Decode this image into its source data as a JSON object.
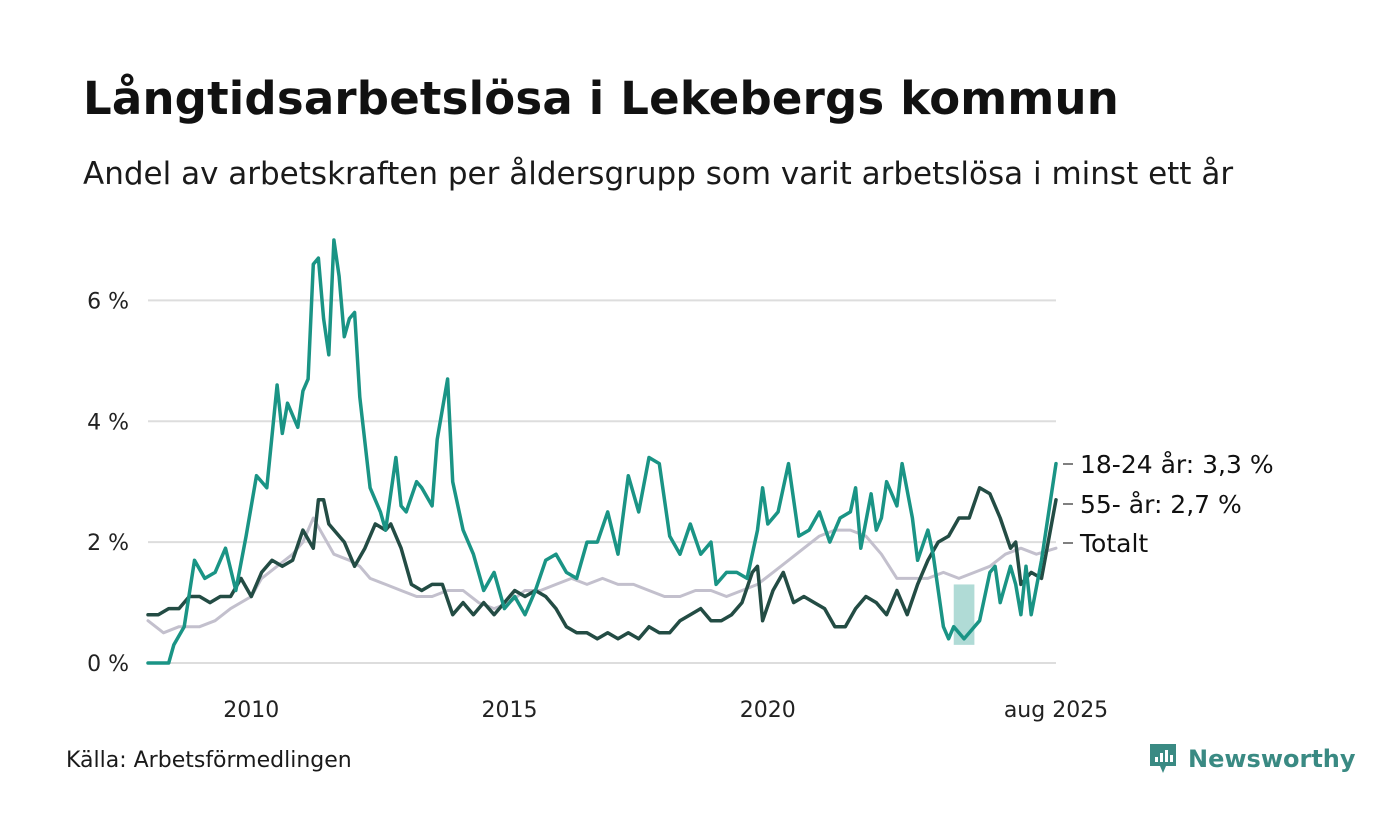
{
  "title": "Långtidsarbetslösa i Lekebergs kommun",
  "subtitle": "Andel av arbetskraften per åldersgrupp som varit arbetslösa i minst ett år",
  "source": "Källa: Arbetsförmedlingen",
  "brand": {
    "name": "Newsworthy",
    "icon": "newsworthy-logo-icon",
    "color": "#3a8a83"
  },
  "chart_data": {
    "type": "line",
    "ylim": [
      0,
      7
    ],
    "xlim": [
      2008.0,
      2025.58
    ],
    "y_ticks": [
      {
        "value": 0,
        "label": "0 %"
      },
      {
        "value": 2,
        "label": "2 %"
      },
      {
        "value": 4,
        "label": "4 %"
      },
      {
        "value": 6,
        "label": "6 %"
      }
    ],
    "x_ticks": [
      {
        "value": 2010,
        "label": "2010"
      },
      {
        "value": 2015,
        "label": "2015"
      },
      {
        "value": 2020,
        "label": "2020"
      },
      {
        "value": 2025.58,
        "label": "aug 2025"
      }
    ],
    "grid": true,
    "legend": "end-of-line labels",
    "uncertainty_band": {
      "series": "18-24 år",
      "x": [
        2023.6,
        2024.0
      ],
      "low": 0.3,
      "high": 1.3,
      "color": "#a7d7d1"
    },
    "series": [
      {
        "name": "Totalt",
        "end_label": "Totalt",
        "color": "#c3c0cd",
        "width": 3,
        "points": [
          [
            2008.0,
            0.7
          ],
          [
            2008.3,
            0.5
          ],
          [
            2008.6,
            0.6
          ],
          [
            2009.0,
            0.6
          ],
          [
            2009.3,
            0.7
          ],
          [
            2009.6,
            0.9
          ],
          [
            2010.0,
            1.1
          ],
          [
            2010.2,
            1.4
          ],
          [
            2010.5,
            1.6
          ],
          [
            2010.8,
            1.8
          ],
          [
            2011.0,
            2.0
          ],
          [
            2011.2,
            2.4
          ],
          [
            2011.4,
            2.1
          ],
          [
            2011.6,
            1.8
          ],
          [
            2011.9,
            1.7
          ],
          [
            2012.1,
            1.6
          ],
          [
            2012.3,
            1.4
          ],
          [
            2012.6,
            1.3
          ],
          [
            2012.9,
            1.2
          ],
          [
            2013.2,
            1.1
          ],
          [
            2013.5,
            1.1
          ],
          [
            2013.8,
            1.2
          ],
          [
            2014.1,
            1.2
          ],
          [
            2014.4,
            1.0
          ],
          [
            2014.7,
            0.9
          ],
          [
            2015.0,
            1.0
          ],
          [
            2015.3,
            1.2
          ],
          [
            2015.6,
            1.2
          ],
          [
            2015.9,
            1.3
          ],
          [
            2016.2,
            1.4
          ],
          [
            2016.5,
            1.3
          ],
          [
            2016.8,
            1.4
          ],
          [
            2017.1,
            1.3
          ],
          [
            2017.4,
            1.3
          ],
          [
            2017.7,
            1.2
          ],
          [
            2018.0,
            1.1
          ],
          [
            2018.3,
            1.1
          ],
          [
            2018.6,
            1.2
          ],
          [
            2018.9,
            1.2
          ],
          [
            2019.2,
            1.1
          ],
          [
            2019.5,
            1.2
          ],
          [
            2019.8,
            1.3
          ],
          [
            2020.1,
            1.5
          ],
          [
            2020.4,
            1.7
          ],
          [
            2020.7,
            1.9
          ],
          [
            2021.0,
            2.1
          ],
          [
            2021.3,
            2.2
          ],
          [
            2021.6,
            2.2
          ],
          [
            2021.9,
            2.1
          ],
          [
            2022.2,
            1.8
          ],
          [
            2022.5,
            1.4
          ],
          [
            2022.8,
            1.4
          ],
          [
            2023.1,
            1.4
          ],
          [
            2023.4,
            1.5
          ],
          [
            2023.7,
            1.4
          ],
          [
            2024.0,
            1.5
          ],
          [
            2024.3,
            1.6
          ],
          [
            2024.6,
            1.8
          ],
          [
            2024.9,
            1.9
          ],
          [
            2025.2,
            1.8
          ],
          [
            2025.58,
            1.9
          ]
        ]
      },
      {
        "name": "55- år",
        "end_label": "55- år: 2,7 %",
        "color": "#234c44",
        "width": 3.5,
        "points": [
          [
            2008.0,
            0.8
          ],
          [
            2008.2,
            0.8
          ],
          [
            2008.4,
            0.9
          ],
          [
            2008.6,
            0.9
          ],
          [
            2008.8,
            1.1
          ],
          [
            2009.0,
            1.1
          ],
          [
            2009.2,
            1.0
          ],
          [
            2009.4,
            1.1
          ],
          [
            2009.6,
            1.1
          ],
          [
            2009.8,
            1.4
          ],
          [
            2010.0,
            1.1
          ],
          [
            2010.2,
            1.5
          ],
          [
            2010.4,
            1.7
          ],
          [
            2010.6,
            1.6
          ],
          [
            2010.8,
            1.7
          ],
          [
            2011.0,
            2.2
          ],
          [
            2011.2,
            1.9
          ],
          [
            2011.3,
            2.7
          ],
          [
            2011.4,
            2.7
          ],
          [
            2011.5,
            2.3
          ],
          [
            2011.8,
            2.0
          ],
          [
            2012.0,
            1.6
          ],
          [
            2012.2,
            1.9
          ],
          [
            2012.4,
            2.3
          ],
          [
            2012.6,
            2.2
          ],
          [
            2012.7,
            2.3
          ],
          [
            2012.9,
            1.9
          ],
          [
            2013.1,
            1.3
          ],
          [
            2013.3,
            1.2
          ],
          [
            2013.5,
            1.3
          ],
          [
            2013.7,
            1.3
          ],
          [
            2013.9,
            0.8
          ],
          [
            2014.1,
            1.0
          ],
          [
            2014.3,
            0.8
          ],
          [
            2014.5,
            1.0
          ],
          [
            2014.7,
            0.8
          ],
          [
            2014.9,
            1.0
          ],
          [
            2015.1,
            1.2
          ],
          [
            2015.3,
            1.1
          ],
          [
            2015.5,
            1.2
          ],
          [
            2015.7,
            1.1
          ],
          [
            2015.9,
            0.9
          ],
          [
            2016.1,
            0.6
          ],
          [
            2016.3,
            0.5
          ],
          [
            2016.5,
            0.5
          ],
          [
            2016.7,
            0.4
          ],
          [
            2016.9,
            0.5
          ],
          [
            2017.1,
            0.4
          ],
          [
            2017.3,
            0.5
          ],
          [
            2017.5,
            0.4
          ],
          [
            2017.7,
            0.6
          ],
          [
            2017.9,
            0.5
          ],
          [
            2018.1,
            0.5
          ],
          [
            2018.3,
            0.7
          ],
          [
            2018.5,
            0.8
          ],
          [
            2018.7,
            0.9
          ],
          [
            2018.9,
            0.7
          ],
          [
            2019.1,
            0.7
          ],
          [
            2019.3,
            0.8
          ],
          [
            2019.5,
            1.0
          ],
          [
            2019.7,
            1.5
          ],
          [
            2019.8,
            1.6
          ],
          [
            2019.9,
            0.7
          ],
          [
            2020.1,
            1.2
          ],
          [
            2020.3,
            1.5
          ],
          [
            2020.5,
            1.0
          ],
          [
            2020.7,
            1.1
          ],
          [
            2020.9,
            1.0
          ],
          [
            2021.1,
            0.9
          ],
          [
            2021.3,
            0.6
          ],
          [
            2021.5,
            0.6
          ],
          [
            2021.7,
            0.9
          ],
          [
            2021.9,
            1.1
          ],
          [
            2022.1,
            1.0
          ],
          [
            2022.3,
            0.8
          ],
          [
            2022.5,
            1.2
          ],
          [
            2022.7,
            0.8
          ],
          [
            2022.9,
            1.3
          ],
          [
            2023.1,
            1.7
          ],
          [
            2023.3,
            2.0
          ],
          [
            2023.5,
            2.1
          ],
          [
            2023.7,
            2.4
          ],
          [
            2023.9,
            2.4
          ],
          [
            2024.1,
            2.9
          ],
          [
            2024.3,
            2.8
          ],
          [
            2024.5,
            2.4
          ],
          [
            2024.7,
            1.9
          ],
          [
            2024.8,
            2.0
          ],
          [
            2024.9,
            1.3
          ],
          [
            2025.1,
            1.5
          ],
          [
            2025.3,
            1.4
          ],
          [
            2025.58,
            2.7
          ]
        ]
      },
      {
        "name": "18-24 år",
        "end_label": "18-24 år: 3,3 %",
        "color": "#1a9485",
        "width": 3.5,
        "points": [
          [
            2008.0,
            0.0
          ],
          [
            2008.4,
            0.0
          ],
          [
            2008.5,
            0.3
          ],
          [
            2008.7,
            0.6
          ],
          [
            2008.9,
            1.7
          ],
          [
            2009.1,
            1.4
          ],
          [
            2009.3,
            1.5
          ],
          [
            2009.5,
            1.9
          ],
          [
            2009.7,
            1.2
          ],
          [
            2009.9,
            2.1
          ],
          [
            2010.1,
            3.1
          ],
          [
            2010.3,
            2.9
          ],
          [
            2010.5,
            4.6
          ],
          [
            2010.6,
            3.8
          ],
          [
            2010.7,
            4.3
          ],
          [
            2010.9,
            3.9
          ],
          [
            2011.0,
            4.5
          ],
          [
            2011.1,
            4.7
          ],
          [
            2011.2,
            6.6
          ],
          [
            2011.3,
            6.7
          ],
          [
            2011.4,
            5.7
          ],
          [
            2011.5,
            5.1
          ],
          [
            2011.6,
            7.0
          ],
          [
            2011.7,
            6.4
          ],
          [
            2011.8,
            5.4
          ],
          [
            2011.9,
            5.7
          ],
          [
            2012.0,
            5.8
          ],
          [
            2012.1,
            4.4
          ],
          [
            2012.3,
            2.9
          ],
          [
            2012.5,
            2.5
          ],
          [
            2012.6,
            2.2
          ],
          [
            2012.8,
            3.4
          ],
          [
            2012.9,
            2.6
          ],
          [
            2013.0,
            2.5
          ],
          [
            2013.2,
            3.0
          ],
          [
            2013.3,
            2.9
          ],
          [
            2013.5,
            2.6
          ],
          [
            2013.6,
            3.7
          ],
          [
            2013.8,
            4.7
          ],
          [
            2013.9,
            3.0
          ],
          [
            2014.1,
            2.2
          ],
          [
            2014.3,
            1.8
          ],
          [
            2014.5,
            1.2
          ],
          [
            2014.7,
            1.5
          ],
          [
            2014.9,
            0.9
          ],
          [
            2015.1,
            1.1
          ],
          [
            2015.3,
            0.8
          ],
          [
            2015.5,
            1.2
          ],
          [
            2015.7,
            1.7
          ],
          [
            2015.9,
            1.8
          ],
          [
            2016.1,
            1.5
          ],
          [
            2016.3,
            1.4
          ],
          [
            2016.5,
            2.0
          ],
          [
            2016.7,
            2.0
          ],
          [
            2016.9,
            2.5
          ],
          [
            2017.1,
            1.8
          ],
          [
            2017.3,
            3.1
          ],
          [
            2017.5,
            2.5
          ],
          [
            2017.7,
            3.4
          ],
          [
            2017.9,
            3.3
          ],
          [
            2018.1,
            2.1
          ],
          [
            2018.3,
            1.8
          ],
          [
            2018.5,
            2.3
          ],
          [
            2018.7,
            1.8
          ],
          [
            2018.9,
            2.0
          ],
          [
            2019.0,
            1.3
          ],
          [
            2019.2,
            1.5
          ],
          [
            2019.4,
            1.5
          ],
          [
            2019.6,
            1.4
          ],
          [
            2019.8,
            2.2
          ],
          [
            2019.9,
            2.9
          ],
          [
            2020.0,
            2.3
          ],
          [
            2020.2,
            2.5
          ],
          [
            2020.4,
            3.3
          ],
          [
            2020.6,
            2.1
          ],
          [
            2020.8,
            2.2
          ],
          [
            2021.0,
            2.5
          ],
          [
            2021.2,
            2.0
          ],
          [
            2021.4,
            2.4
          ],
          [
            2021.6,
            2.5
          ],
          [
            2021.7,
            2.9
          ],
          [
            2021.8,
            1.9
          ],
          [
            2022.0,
            2.8
          ],
          [
            2022.1,
            2.2
          ],
          [
            2022.2,
            2.4
          ],
          [
            2022.3,
            3.0
          ],
          [
            2022.5,
            2.6
          ],
          [
            2022.6,
            3.3
          ],
          [
            2022.8,
            2.4
          ],
          [
            2022.9,
            1.7
          ],
          [
            2023.1,
            2.2
          ],
          [
            2023.2,
            1.8
          ],
          [
            2023.4,
            0.6
          ],
          [
            2023.5,
            0.4
          ],
          [
            2023.6,
            0.6
          ],
          [
            2023.8,
            0.4
          ],
          [
            2024.0,
            0.6
          ],
          [
            2024.1,
            0.7
          ],
          [
            2024.3,
            1.5
          ],
          [
            2024.4,
            1.6
          ],
          [
            2024.5,
            1.0
          ],
          [
            2024.7,
            1.6
          ],
          [
            2024.8,
            1.3
          ],
          [
            2024.9,
            0.8
          ],
          [
            2025.0,
            1.6
          ],
          [
            2025.1,
            0.8
          ],
          [
            2025.3,
            1.7
          ],
          [
            2025.58,
            3.3
          ]
        ]
      }
    ]
  }
}
